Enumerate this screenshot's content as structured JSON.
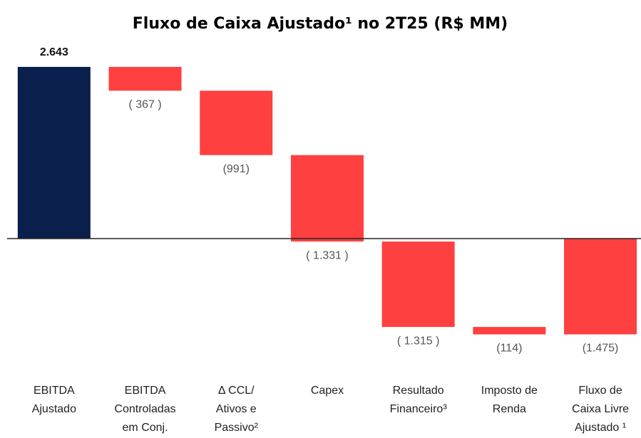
{
  "chart_data": {
    "type": "waterfall",
    "title": "Fluxo de Caixa Ajustado¹ no 2T25 (R$ MM)",
    "categories": [
      [
        "EBITDA",
        "Ajustado"
      ],
      [
        "EBITDA",
        "Controladas",
        "em Conj."
      ],
      [
        "Δ CCL/",
        "Ativos e",
        "Passivo²"
      ],
      [
        "Capex"
      ],
      [
        "Resultado",
        "Financeiro³"
      ],
      [
        "Imposto de",
        "Renda"
      ],
      [
        "Fluxo de",
        "Caixa Livre",
        "Ajustado ¹"
      ]
    ],
    "values": [
      2643,
      -367,
      -991,
      -1331,
      -1315,
      -114,
      -1475
    ],
    "value_labels": [
      "2.643",
      "( 367 )",
      "(991)",
      "( 1.331 )",
      "( 1.315 )",
      "(114)",
      "(1.475)"
    ],
    "measures": [
      "absolute",
      "relative",
      "relative",
      "relative",
      "relative",
      "relative",
      "total"
    ],
    "positive_color": "#0b1f4d",
    "negative_color": "#ff4040",
    "ylim": [
      -1700,
      2800
    ]
  }
}
